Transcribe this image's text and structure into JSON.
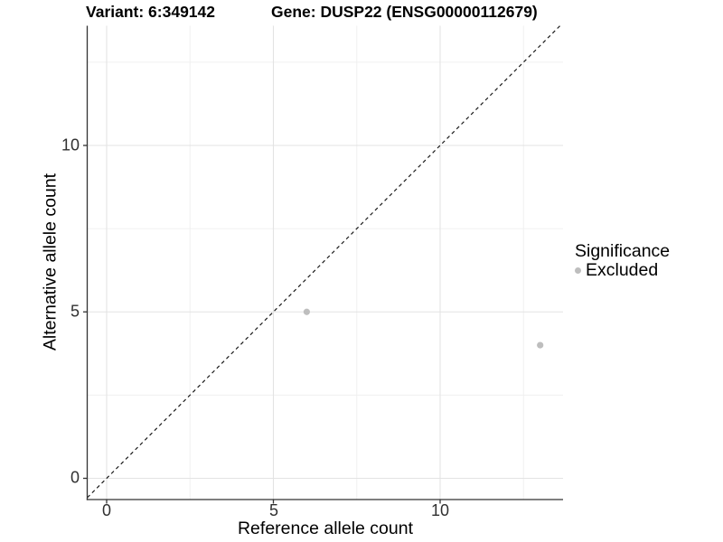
{
  "header": {
    "variant_title": "Variant: 6:349142",
    "gene_title": "Gene: DUSP22 (ENSG00000112679)"
  },
  "chart_data": {
    "type": "scatter",
    "xlabel": "Reference allele count",
    "ylabel": "Alternative allele count",
    "x_ticks": [
      0,
      5,
      10
    ],
    "y_ticks": [
      0,
      5,
      10
    ],
    "x_minor": [
      2.5,
      7.5,
      12.5
    ],
    "y_minor": [
      2.5,
      7.5,
      12.5
    ],
    "xlim": [
      -0.58,
      13.69
    ],
    "ylim": [
      -0.64,
      13.6
    ],
    "grid": true,
    "legend_position": "right",
    "series": [
      {
        "name": "Excluded",
        "color": "#BEBEBE",
        "points": [
          [
            6,
            5
          ],
          [
            13,
            4
          ]
        ]
      }
    ],
    "identity_line": {
      "slope": 1,
      "intercept": 0,
      "style": "dashed",
      "color": "#1a1a1a"
    },
    "colors": {
      "grid_major": "#E3E3E3",
      "grid_minor": "#F0F0F0",
      "axis": "#333333",
      "point": "#BEBEBE"
    }
  },
  "legend": {
    "title": "Significance",
    "items": [
      {
        "label": "Excluded",
        "color": "#BEBEBE"
      }
    ]
  }
}
